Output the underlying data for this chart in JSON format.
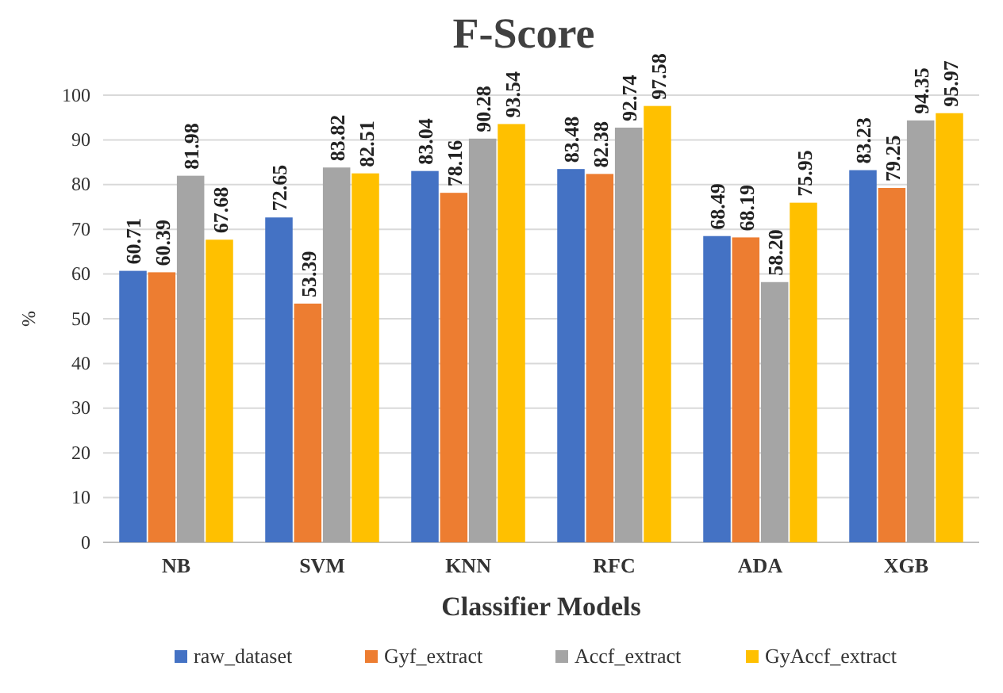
{
  "chart_data": {
    "type": "bar",
    "title": "F-Score",
    "xlabel": "Classifier Models",
    "ylabel": "%",
    "categories": [
      "NB",
      "SVM",
      "KNN",
      "RFC",
      "ADA",
      "XGB"
    ],
    "series": [
      {
        "name": "raw_dataset",
        "color": "#4472c4",
        "values": [
          60.71,
          72.65,
          83.04,
          83.48,
          68.49,
          83.23
        ],
        "value_labels": [
          "60.71",
          "72.65",
          "83.04",
          "83.48",
          "68.49",
          "83.23"
        ]
      },
      {
        "name": "Gyf_extract",
        "color": "#ed7d31",
        "values": [
          60.39,
          53.39,
          78.16,
          82.38,
          68.19,
          79.25
        ],
        "value_labels": [
          "60.39",
          "53.39",
          "78.16",
          "82.38",
          "68.19",
          "79.25"
        ]
      },
      {
        "name": "Accf_extract",
        "color": "#a5a5a5",
        "values": [
          81.98,
          83.82,
          90.28,
          92.74,
          58.2,
          94.35
        ],
        "value_labels": [
          "81.98",
          "83.82",
          "90.28",
          "92.74",
          "58.20",
          "94.35"
        ]
      },
      {
        "name": "GyAccf_extract",
        "color": "#ffc000",
        "values": [
          67.68,
          82.51,
          93.54,
          97.58,
          75.95,
          95.97
        ],
        "value_labels": [
          "67.68",
          "82.51",
          "93.54",
          "97.58",
          "75.95",
          "95.97"
        ]
      }
    ],
    "ylim": [
      0,
      100
    ],
    "yticks": [
      0,
      10,
      20,
      30,
      40,
      50,
      60,
      70,
      80,
      90,
      100
    ],
    "grid": "y",
    "legend": "bottom"
  }
}
